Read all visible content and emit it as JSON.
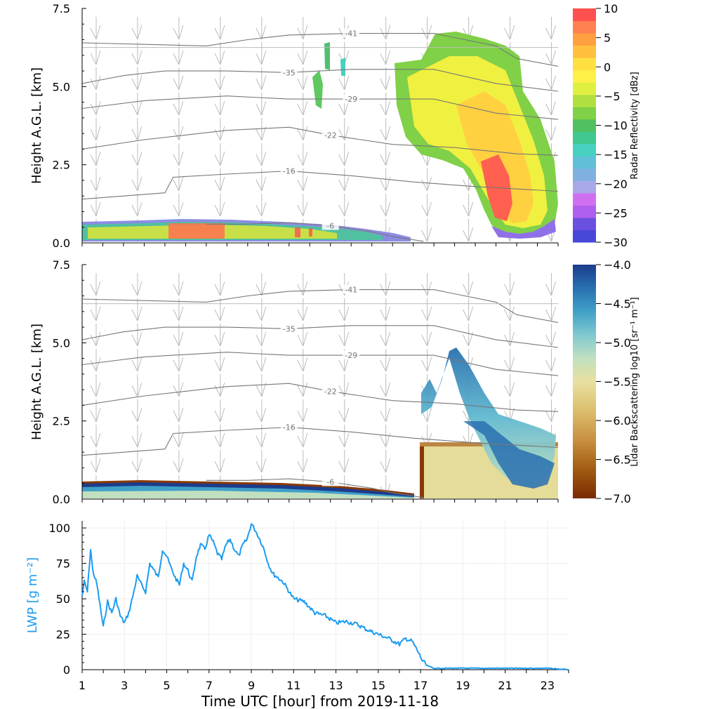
{
  "chart_data": [
    {
      "type": "heatmap",
      "panel": "radar",
      "xlim": [
        1,
        24
      ],
      "ylim": [
        0,
        7.5
      ],
      "yticks": [
        "0.0",
        "2.5",
        "5.0",
        "7.5"
      ],
      "yticks_values": [
        0,
        2.5,
        5.0,
        7.5
      ],
      "ylabel": "Height A.G.L. [km]",
      "colorbar": {
        "label": "Radar Reflectivity [dBz]",
        "range": [
          -30,
          10
        ],
        "ticks": [
          "10",
          "5",
          "0",
          "−5",
          "−10",
          "−15",
          "−20",
          "−25",
          "−30"
        ],
        "tick_values": [
          10,
          5,
          0,
          -5,
          -10,
          -15,
          -20,
          -25,
          -30
        ],
        "colors_low_to_high": [
          "#4848d8",
          "#6a50e0",
          "#b060ee",
          "#d070f0",
          "#a8a8e8",
          "#80b0e0",
          "#60c0d8",
          "#48d0c0",
          "#40c890",
          "#50c060",
          "#80d048",
          "#b0e040",
          "#e0f040",
          "#fff048",
          "#ffe040",
          "#ffc040",
          "#ffa040",
          "#ff8050",
          "#ff5050"
        ]
      },
      "temperature_contours": [
        {
          "label": "-41",
          "points": [
            [
              1,
              6.4
            ],
            [
              4,
              6.35
            ],
            [
              7,
              6.3
            ],
            [
              9,
              6.5
            ],
            [
              11,
              6.65
            ],
            [
              14,
              6.7
            ],
            [
              18,
              6.7
            ],
            [
              21,
              6.3
            ],
            [
              22,
              5.9
            ],
            [
              24,
              5.65
            ]
          ]
        },
        {
          "label": "-35",
          "points": [
            [
              1,
              5.1
            ],
            [
              3,
              5.35
            ],
            [
              5,
              5.5
            ],
            [
              8,
              5.5
            ],
            [
              11,
              5.45
            ],
            [
              14,
              5.55
            ],
            [
              18,
              5.55
            ],
            [
              21,
              5.1
            ],
            [
              24,
              4.85
            ]
          ]
        },
        {
          "label": "-29",
          "points": [
            [
              1,
              4.3
            ],
            [
              4,
              4.55
            ],
            [
              8,
              4.7
            ],
            [
              11,
              4.6
            ],
            [
              14,
              4.6
            ],
            [
              18,
              4.6
            ],
            [
              21,
              4.15
            ],
            [
              24,
              3.95
            ]
          ]
        },
        {
          "label": "-22",
          "points": [
            [
              1,
              3.0
            ],
            [
              4,
              3.3
            ],
            [
              8,
              3.6
            ],
            [
              11,
              3.7
            ],
            [
              13,
              3.45
            ],
            [
              16,
              3.15
            ],
            [
              19,
              3.05
            ],
            [
              22,
              2.85
            ],
            [
              24,
              2.8
            ]
          ]
        },
        {
          "label": "-16",
          "points": [
            [
              1,
              1.4
            ],
            [
              5,
              1.6
            ],
            [
              5.4,
              2.1
            ],
            [
              8,
              2.2
            ],
            [
              11,
              2.3
            ],
            [
              14,
              2.15
            ],
            [
              17,
              1.95
            ],
            [
              20,
              1.8
            ],
            [
              24,
              1.65
            ]
          ]
        },
        {
          "label": "-6",
          "points": [
            [
              7,
              0.6
            ],
            [
              9,
              0.6
            ],
            [
              11,
              0.65
            ],
            [
              13,
              0.55
            ],
            [
              15,
              0.35
            ],
            [
              16,
              0.2
            ],
            [
              17.5,
              0.05
            ]
          ]
        }
      ]
    },
    {
      "type": "heatmap",
      "panel": "lidar",
      "xlim": [
        1,
        24
      ],
      "ylim": [
        0,
        7.5
      ],
      "yticks": [
        "0.0",
        "2.5",
        "5.0",
        "7.5"
      ],
      "yticks_values": [
        0,
        2.5,
        5.0,
        7.5
      ],
      "ylabel": "Height A.G.L. [km]",
      "colorbar": {
        "label": "Lidar Backscattering log10 [sr⁻¹ m⁻¹]",
        "range": [
          -7,
          -4
        ],
        "ticks": [
          "−4.0",
          "−4.5",
          "−5.0",
          "−5.5",
          "−6.0",
          "−6.5",
          "−7.0"
        ],
        "tick_values": [
          -4.0,
          -4.5,
          -5.0,
          -5.5,
          -6.0,
          -6.5,
          -7.0
        ],
        "colors_low_to_high": [
          "#7a2a00",
          "#a05a10",
          "#c89040",
          "#dcc070",
          "#e8e0a0",
          "#c0e0c0",
          "#80c8d0",
          "#40a0c8",
          "#2870b0",
          "#1c3c8c"
        ]
      }
    },
    {
      "type": "line",
      "panel": "lwp",
      "xlim": [
        1,
        24
      ],
      "ylim": [
        0,
        105
      ],
      "xticks": [
        "1",
        "3",
        "5",
        "7",
        "9",
        "11",
        "13",
        "15",
        "17",
        "19",
        "21",
        "23"
      ],
      "xticks_values": [
        1,
        3,
        5,
        7,
        9,
        11,
        13,
        15,
        17,
        19,
        21,
        23
      ],
      "yticks": [
        "0",
        "25",
        "50",
        "75",
        "100"
      ],
      "yticks_values": [
        0,
        25,
        50,
        75,
        100
      ],
      "xlabel": "Time UTC [hour] from 2019-11-18",
      "ylabel": "LWP [g m⁻²]",
      "color": "#1c9cf0",
      "grid": true,
      "series": [
        {
          "x": [
            1.0,
            1.1,
            1.25,
            1.4,
            1.5,
            1.7,
            2.0,
            2.2,
            2.4,
            2.6,
            2.8,
            3.0,
            3.2,
            3.4,
            3.6,
            3.8,
            4.0,
            4.2,
            4.4,
            4.6,
            4.8,
            5.0,
            5.2,
            5.4,
            5.6,
            5.8,
            6.0,
            6.2,
            6.4,
            6.6,
            6.8,
            7.0,
            7.2,
            7.4,
            7.6,
            7.8,
            8.0,
            8.2,
            8.4,
            8.6,
            8.8,
            9.0,
            9.2,
            9.4,
            9.6,
            9.8,
            10.0,
            10.5,
            11.0,
            11.5,
            12.0,
            12.5,
            13.0,
            13.5,
            14.0,
            14.5,
            15.0,
            15.5,
            16.0,
            16.3,
            16.6,
            16.9,
            17.1,
            17.3,
            17.6,
            18.0,
            19.0,
            20.0,
            21.0,
            22.0,
            23.0,
            24.0
          ],
          "y": [
            52,
            62,
            55,
            85,
            70,
            60,
            30,
            48,
            40,
            50,
            38,
            33,
            40,
            52,
            66,
            60,
            55,
            75,
            70,
            65,
            85,
            80,
            72,
            65,
            60,
            75,
            70,
            62,
            80,
            88,
            85,
            95,
            90,
            82,
            78,
            88,
            92,
            85,
            80,
            88,
            92,
            103,
            98,
            92,
            85,
            75,
            68,
            62,
            50,
            48,
            40,
            38,
            33,
            34,
            32,
            28,
            25,
            22,
            18,
            22,
            20,
            12,
            6,
            3,
            1,
            1,
            1,
            1,
            1,
            1,
            1,
            0
          ]
        }
      ]
    }
  ]
}
